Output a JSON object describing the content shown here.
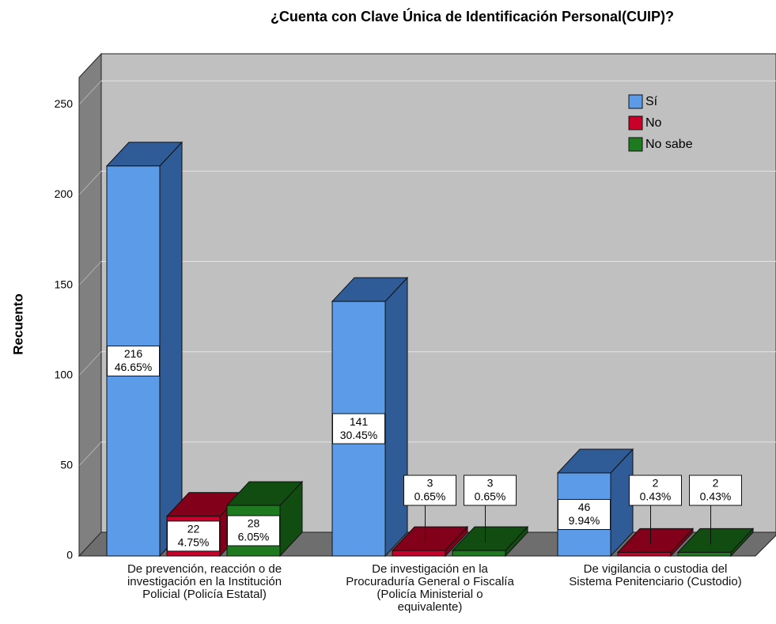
{
  "chart_data": {
    "type": "bar3d",
    "title": "¿Cuenta con Clave Única de Identificación Personal(CUIP)?",
    "y_label": "Recuento",
    "categories": [
      "De prevención, reacción o de investigación en la Institución Policial (Policía Estatal)",
      "De investigación en la Procuraduría General o Fiscalía (Policía Ministerial o equivalente)",
      "De vigilancia o custodia del Sistema Penitenciario (Custodio)"
    ],
    "series": [
      {
        "name": "Sí",
        "color": "#5b9be8",
        "side": "#2f5b97",
        "values": [
          216,
          141,
          46
        ],
        "percent_labels": [
          "46.65%",
          "30.45%",
          "9.94%"
        ]
      },
      {
        "name": "No",
        "color": "#c8002a",
        "side": "#820019",
        "values": [
          22,
          3,
          2
        ],
        "percent_labels": [
          "4.75%",
          "0.65%",
          "0.43%"
        ]
      },
      {
        "name": "No sabe",
        "color": "#1e7a1e",
        "side": "#114d11",
        "values": [
          28,
          3,
          2
        ],
        "percent_labels": [
          "6.05%",
          "0.65%",
          "0.43%"
        ]
      }
    ],
    "ylim": [
      0,
      265
    ],
    "yticks": [
      0,
      50,
      100,
      150,
      200,
      250
    ],
    "grid": true,
    "legend": "top-right"
  }
}
